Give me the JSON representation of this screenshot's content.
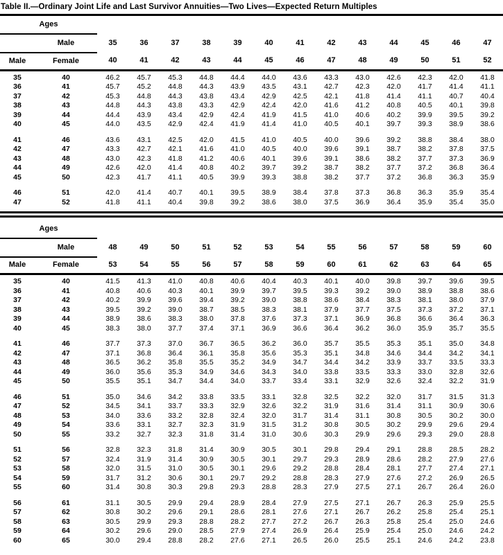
{
  "title": "Table II.—Ordinary Joint Life and Last Survivor Annuities—Two Lives—Expected Return Multiples",
  "tables": [
    {
      "ages_label": "Ages",
      "male_header_label": "Male",
      "male_col_label": "Male",
      "female_col_label": "Female",
      "male_ages": [
        "35",
        "36",
        "37",
        "38",
        "39",
        "40",
        "41",
        "42",
        "43",
        "44",
        "45",
        "46",
        "47"
      ],
      "female_ages": [
        "40",
        "41",
        "42",
        "43",
        "44",
        "45",
        "46",
        "47",
        "48",
        "49",
        "50",
        "51",
        "52"
      ],
      "row_groups": [
        {
          "rows": [
            {
              "male": "35",
              "female": "40",
              "values": [
                "46.2",
                "45.7",
                "45.3",
                "44.8",
                "44.4",
                "44.0",
                "43.6",
                "43.3",
                "43.0",
                "42.6",
                "42.3",
                "42.0",
                "41.8"
              ]
            },
            {
              "male": "36",
              "female": "41",
              "values": [
                "45.7",
                "45.2",
                "44.8",
                "44.3",
                "43.9",
                "43.5",
                "43.1",
                "42.7",
                "42.3",
                "42.0",
                "41.7",
                "41.4",
                "41.1"
              ]
            },
            {
              "male": "37",
              "female": "42",
              "values": [
                "45.3",
                "44.8",
                "44.3",
                "43.8",
                "43.4",
                "42.9",
                "42.5",
                "42.1",
                "41.8",
                "41.4",
                "41.1",
                "40.7",
                "40.4"
              ]
            },
            {
              "male": "38",
              "female": "43",
              "values": [
                "44.8",
                "44.3",
                "43.8",
                "43.3",
                "42.9",
                "42.4",
                "42.0",
                "41.6",
                "41.2",
                "40.8",
                "40.5",
                "40.1",
                "39.8"
              ]
            },
            {
              "male": "39",
              "female": "44",
              "values": [
                "44.4",
                "43.9",
                "43.4",
                "42.9",
                "42.4",
                "41.9",
                "41.5",
                "41.0",
                "40.6",
                "40.2",
                "39.9",
                "39.5",
                "39.2"
              ]
            },
            {
              "male": "40",
              "female": "45",
              "values": [
                "44.0",
                "43.5",
                "42.9",
                "42.4",
                "41.9",
                "41.4",
                "41.0",
                "40.5",
                "40.1",
                "39.7",
                "39.3",
                "38.9",
                "38.6"
              ]
            }
          ]
        },
        {
          "rows": [
            {
              "male": "41",
              "female": "46",
              "values": [
                "43.6",
                "43.1",
                "42.5",
                "42.0",
                "41.5",
                "41.0",
                "40.5",
                "40.0",
                "39.6",
                "39.2",
                "38.8",
                "38.4",
                "38.0"
              ]
            },
            {
              "male": "42",
              "female": "47",
              "values": [
                "43.3",
                "42.7",
                "42.1",
                "41.6",
                "41.0",
                "40.5",
                "40.0",
                "39.6",
                "39.1",
                "38.7",
                "38.2",
                "37.8",
                "37.5"
              ]
            },
            {
              "male": "43",
              "female": "48",
              "values": [
                "43.0",
                "42.3",
                "41.8",
                "41.2",
                "40.6",
                "40.1",
                "39.6",
                "39.1",
                "38.6",
                "38.2",
                "37.7",
                "37.3",
                "36.9"
              ]
            },
            {
              "male": "44",
              "female": "49",
              "values": [
                "42.6",
                "42.0",
                "41.4",
                "40.8",
                "40.2",
                "39.7",
                "39.2",
                "38.7",
                "38.2",
                "37.7",
                "37.2",
                "36.8",
                "36.4"
              ]
            },
            {
              "male": "45",
              "female": "50",
              "values": [
                "42.3",
                "41.7",
                "41.1",
                "40.5",
                "39.9",
                "39.3",
                "38.8",
                "38.2",
                "37.7",
                "37.2",
                "36.8",
                "36.3",
                "35.9"
              ]
            }
          ]
        },
        {
          "rows": [
            {
              "male": "46",
              "female": "51",
              "values": [
                "42.0",
                "41.4",
                "40.7",
                "40.1",
                "39.5",
                "38.9",
                "38.4",
                "37.8",
                "37.3",
                "36.8",
                "36.3",
                "35.9",
                "35.4"
              ]
            },
            {
              "male": "47",
              "female": "52",
              "values": [
                "41.8",
                "41.1",
                "40.4",
                "39.8",
                "39.2",
                "38.6",
                "38.0",
                "37.5",
                "36.9",
                "36.4",
                "35.9",
                "35.4",
                "35.0"
              ]
            }
          ]
        }
      ]
    },
    {
      "ages_label": "Ages",
      "male_header_label": "Male",
      "male_col_label": "Male",
      "female_col_label": "Female",
      "male_ages": [
        "48",
        "49",
        "50",
        "51",
        "52",
        "53",
        "54",
        "55",
        "56",
        "57",
        "58",
        "59",
        "60"
      ],
      "female_ages": [
        "53",
        "54",
        "55",
        "56",
        "57",
        "58",
        "59",
        "60",
        "61",
        "62",
        "63",
        "64",
        "65"
      ],
      "row_groups": [
        {
          "rows": [
            {
              "male": "35",
              "female": "40",
              "values": [
                "41.5",
                "41.3",
                "41.0",
                "40.8",
                "40.6",
                "40.4",
                "40.3",
                "40.1",
                "40.0",
                "39.8",
                "39.7",
                "39.6",
                "39.5"
              ]
            },
            {
              "male": "36",
              "female": "41",
              "values": [
                "40.8",
                "40.6",
                "40.3",
                "40.1",
                "39.9",
                "39.7",
                "39.5",
                "39.3",
                "39.2",
                "39.0",
                "38.9",
                "38.8",
                "38.6"
              ]
            },
            {
              "male": "37",
              "female": "42",
              "values": [
                "40.2",
                "39.9",
                "39.6",
                "39.4",
                "39.2",
                "39.0",
                "38.8",
                "38.6",
                "38.4",
                "38.3",
                "38.1",
                "38.0",
                "37.9"
              ]
            },
            {
              "male": "38",
              "female": "43",
              "values": [
                "39.5",
                "39.2",
                "39.0",
                "38.7",
                "38.5",
                "38.3",
                "38.1",
                "37.9",
                "37.7",
                "37.5",
                "37.3",
                "37.2",
                "37.1"
              ]
            },
            {
              "male": "39",
              "female": "44",
              "values": [
                "38.9",
                "38.6",
                "38.3",
                "38.0",
                "37.8",
                "37.6",
                "37.3",
                "37.1",
                "36.9",
                "36.8",
                "36.6",
                "36.4",
                "36.3"
              ]
            },
            {
              "male": "40",
              "female": "45",
              "values": [
                "38.3",
                "38.0",
                "37.7",
                "37.4",
                "37.1",
                "36.9",
                "36.6",
                "36.4",
                "36.2",
                "36.0",
                "35.9",
                "35.7",
                "35.5"
              ]
            }
          ]
        },
        {
          "rows": [
            {
              "male": "41",
              "female": "46",
              "values": [
                "37.7",
                "37.3",
                "37.0",
                "36.7",
                "36.5",
                "36.2",
                "36.0",
                "35.7",
                "35.5",
                "35.3",
                "35.1",
                "35.0",
                "34.8"
              ]
            },
            {
              "male": "42",
              "female": "47",
              "values": [
                "37.1",
                "36.8",
                "36.4",
                "36.1",
                "35.8",
                "35.6",
                "35.3",
                "35.1",
                "34.8",
                "34.6",
                "34.4",
                "34.2",
                "34.1"
              ]
            },
            {
              "male": "43",
              "female": "48",
              "values": [
                "36.5",
                "36.2",
                "35.8",
                "35.5",
                "35.2",
                "34.9",
                "34.7",
                "34.4",
                "34.2",
                "33.9",
                "33.7",
                "33.5",
                "33.3"
              ]
            },
            {
              "male": "44",
              "female": "49",
              "values": [
                "36.0",
                "35.6",
                "35.3",
                "34.9",
                "34.6",
                "34.3",
                "34.0",
                "33.8",
                "33.5",
                "33.3",
                "33.0",
                "32.8",
                "32.6"
              ]
            },
            {
              "male": "45",
              "female": "50",
              "values": [
                "35.5",
                "35.1",
                "34.7",
                "34.4",
                "34.0",
                "33.7",
                "33.4",
                "33.1",
                "32.9",
                "32.6",
                "32.4",
                "32.2",
                "31.9"
              ]
            }
          ]
        },
        {
          "rows": [
            {
              "male": "46",
              "female": "51",
              "values": [
                "35.0",
                "34.6",
                "34.2",
                "33.8",
                "33.5",
                "33.1",
                "32.8",
                "32.5",
                "32.2",
                "32.0",
                "31.7",
                "31.5",
                "31.3"
              ]
            },
            {
              "male": "47",
              "female": "52",
              "values": [
                "34.5",
                "34.1",
                "33.7",
                "33.3",
                "32.9",
                "32.6",
                "32.2",
                "31.9",
                "31.6",
                "31.4",
                "31.1",
                "30.9",
                "30.6"
              ]
            },
            {
              "male": "48",
              "female": "53",
              "values": [
                "34.0",
                "33.6",
                "33.2",
                "32.8",
                "32.4",
                "32.0",
                "31.7",
                "31.4",
                "31.1",
                "30.8",
                "30.5",
                "30.2",
                "30.0"
              ]
            },
            {
              "male": "49",
              "female": "54",
              "values": [
                "33.6",
                "33.1",
                "32.7",
                "32.3",
                "31.9",
                "31.5",
                "31.2",
                "30.8",
                "30.5",
                "30.2",
                "29.9",
                "29.6",
                "29.4"
              ]
            },
            {
              "male": "50",
              "female": "55",
              "values": [
                "33.2",
                "32.7",
                "32.3",
                "31.8",
                "31.4",
                "31.0",
                "30.6",
                "30.3",
                "29.9",
                "29.6",
                "29.3",
                "29.0",
                "28.8"
              ]
            }
          ]
        },
        {
          "rows": [
            {
              "male": "51",
              "female": "56",
              "values": [
                "32.8",
                "32.3",
                "31.8",
                "31.4",
                "30.9",
                "30.5",
                "30.1",
                "29.8",
                "29.4",
                "29.1",
                "28.8",
                "28.5",
                "28.2"
              ]
            },
            {
              "male": "52",
              "female": "57",
              "values": [
                "32.4",
                "31.9",
                "31.4",
                "30.9",
                "30.5",
                "30.1",
                "29.7",
                "29.3",
                "28.9",
                "28.6",
                "28.2",
                "27.9",
                "27.6"
              ]
            },
            {
              "male": "53",
              "female": "58",
              "values": [
                "32.0",
                "31.5",
                "31.0",
                "30.5",
                "30.1",
                "29.6",
                "29.2",
                "28.8",
                "28.4",
                "28.1",
                "27.7",
                "27.4",
                "27.1"
              ]
            },
            {
              "male": "54",
              "female": "59",
              "values": [
                "31.7",
                "31.2",
                "30.6",
                "30.1",
                "29.7",
                "29.2",
                "28.8",
                "28.3",
                "27.9",
                "27.6",
                "27.2",
                "26.9",
                "26.5"
              ]
            },
            {
              "male": "55",
              "female": "60",
              "values": [
                "31.4",
                "30.8",
                "30.3",
                "29.8",
                "29.3",
                "28.8",
                "28.3",
                "27.9",
                "27.5",
                "27.1",
                "26.7",
                "26.4",
                "26.0"
              ]
            }
          ]
        },
        {
          "rows": [
            {
              "male": "56",
              "female": "61",
              "values": [
                "31.1",
                "30.5",
                "29.9",
                "29.4",
                "28.9",
                "28.4",
                "27.9",
                "27.5",
                "27.1",
                "26.7",
                "26.3",
                "25.9",
                "25.5"
              ]
            },
            {
              "male": "57",
              "female": "62",
              "values": [
                "30.8",
                "30.2",
                "29.6",
                "29.1",
                "28.6",
                "28.1",
                "27.6",
                "27.1",
                "26.7",
                "26.2",
                "25.8",
                "25.4",
                "25.1"
              ]
            },
            {
              "male": "58",
              "female": "63",
              "values": [
                "30.5",
                "29.9",
                "29.3",
                "28.8",
                "28.2",
                "27.7",
                "27.2",
                "26.7",
                "26.3",
                "25.8",
                "25.4",
                "25.0",
                "24.6"
              ]
            },
            {
              "male": "59",
              "female": "64",
              "values": [
                "30.2",
                "29.6",
                "29.0",
                "28.5",
                "27.9",
                "27.4",
                "26.9",
                "26.4",
                "25.9",
                "25.4",
                "25.0",
                "24.6",
                "24.2"
              ]
            },
            {
              "male": "60",
              "female": "65",
              "values": [
                "30.0",
                "29.4",
                "28.8",
                "28.2",
                "27.6",
                "27.1",
                "26.5",
                "26.0",
                "25.5",
                "25.1",
                "24.6",
                "24.2",
                "23.8"
              ]
            }
          ]
        }
      ]
    }
  ]
}
